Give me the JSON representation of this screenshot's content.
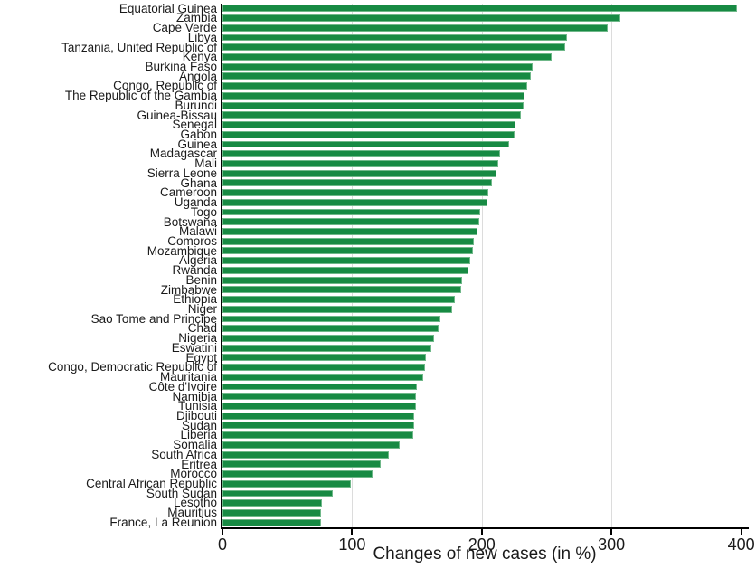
{
  "chart_data": {
    "type": "bar",
    "orientation": "horizontal",
    "title": "",
    "xlabel": "Changes of new cases (in %)",
    "ylabel": "",
    "xlim": [
      0,
      400
    ],
    "x_ticks": [
      0,
      100,
      200,
      300,
      400
    ],
    "grid": "vertical-light-gray",
    "legend": "none",
    "bar_color": "#178a43",
    "categories": [
      "Equatorial Guinea",
      "Zambia",
      "Cape Verde",
      "Libya",
      "Tanzania, United Republic of",
      "Kenya",
      "Burkina Faso",
      "Angola",
      "Congo, Republic of",
      "The Republic of the Gambia",
      "Burundi",
      "Guinea-Bissau",
      "Senegal",
      "Gabon",
      "Guinea",
      "Madagascar",
      "Mali",
      "Sierra Leone",
      "Ghana",
      "Cameroon",
      "Uganda",
      "Togo",
      "Botswana",
      "Malawi",
      "Comoros",
      "Mozambique",
      "Algeria",
      "Rwanda",
      "Benin",
      "Zimbabwe",
      "Ethiopia",
      "Niger",
      "Sao Tome and Principe",
      "Chad",
      "Nigeria",
      "Eswatini",
      "Egypt",
      "Congo, Democratic Republic of",
      "Mauritania",
      "Côte d'Ivoire",
      "Namibia",
      "Tunisia",
      "Djibouti",
      "Sudan",
      "Liberia",
      "Somalia",
      "South Africa",
      "Eritrea",
      "Morocco",
      "Central African Republic",
      "South Sudan",
      "Lesotho",
      "Mauritius",
      "France, La Reunion"
    ],
    "values": [
      397,
      307,
      297,
      266,
      264,
      254,
      239,
      238,
      235,
      233,
      232,
      230,
      226,
      225,
      221,
      214,
      213,
      211,
      208,
      205,
      204,
      199,
      198,
      197,
      194,
      193,
      191,
      190,
      185,
      184,
      179,
      177,
      168,
      167,
      163,
      161,
      157,
      156,
      155,
      150,
      149,
      149,
      148,
      148,
      147,
      137,
      128,
      122,
      116,
      99,
      85,
      77,
      76,
      76
    ]
  }
}
